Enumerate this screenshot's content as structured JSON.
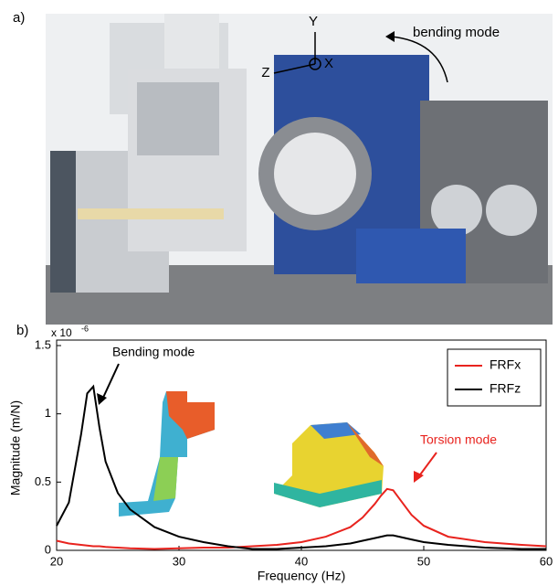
{
  "panel_a": {
    "label": "a)",
    "axis_y": "Y",
    "axis_z": "Z",
    "axis_x": "X",
    "annotation": "bending mode"
  },
  "chart_data": {
    "type": "line",
    "panel_label": "b)",
    "y_multiplier": "x 10",
    "y_exponent": "-6",
    "xlabel": "Frequency (Hz)",
    "ylabel": "Magnitude (m/N)",
    "x": [
      20,
      21,
      22,
      22.5,
      23,
      23.5,
      24,
      25,
      26,
      28,
      30,
      32,
      34,
      36,
      38,
      40,
      42,
      44,
      45,
      46,
      46.5,
      47,
      47.5,
      48,
      49,
      50,
      52,
      55,
      58,
      60
    ],
    "series": [
      {
        "name": "FRFx",
        "color": "#e8231e",
        "values": [
          0.07,
          0.05,
          0.04,
          0.035,
          0.03,
          0.03,
          0.025,
          0.02,
          0.015,
          0.01,
          0.015,
          0.02,
          0.02,
          0.03,
          0.04,
          0.06,
          0.1,
          0.17,
          0.24,
          0.34,
          0.4,
          0.45,
          0.44,
          0.38,
          0.26,
          0.18,
          0.1,
          0.06,
          0.04,
          0.03
        ]
      },
      {
        "name": "FRFz",
        "color": "#000000",
        "values": [
          0.18,
          0.35,
          0.85,
          1.15,
          1.2,
          0.9,
          0.65,
          0.42,
          0.3,
          0.17,
          0.1,
          0.06,
          0.03,
          0.01,
          0.01,
          0.02,
          0.03,
          0.05,
          0.07,
          0.09,
          0.1,
          0.11,
          0.11,
          0.1,
          0.08,
          0.06,
          0.04,
          0.02,
          0.01,
          0.01
        ]
      }
    ],
    "xlim": [
      20,
      60
    ],
    "xticks": [
      20,
      30,
      40,
      50,
      60
    ],
    "ylim": [
      0,
      1.5
    ],
    "yticks": [
      0,
      0.5,
      1,
      1.5
    ],
    "annotations": [
      {
        "text": "Bending mode",
        "color": "#000000"
      },
      {
        "text": "Torsion mode",
        "color": "#e8231e"
      }
    ],
    "legend": "upper right"
  }
}
